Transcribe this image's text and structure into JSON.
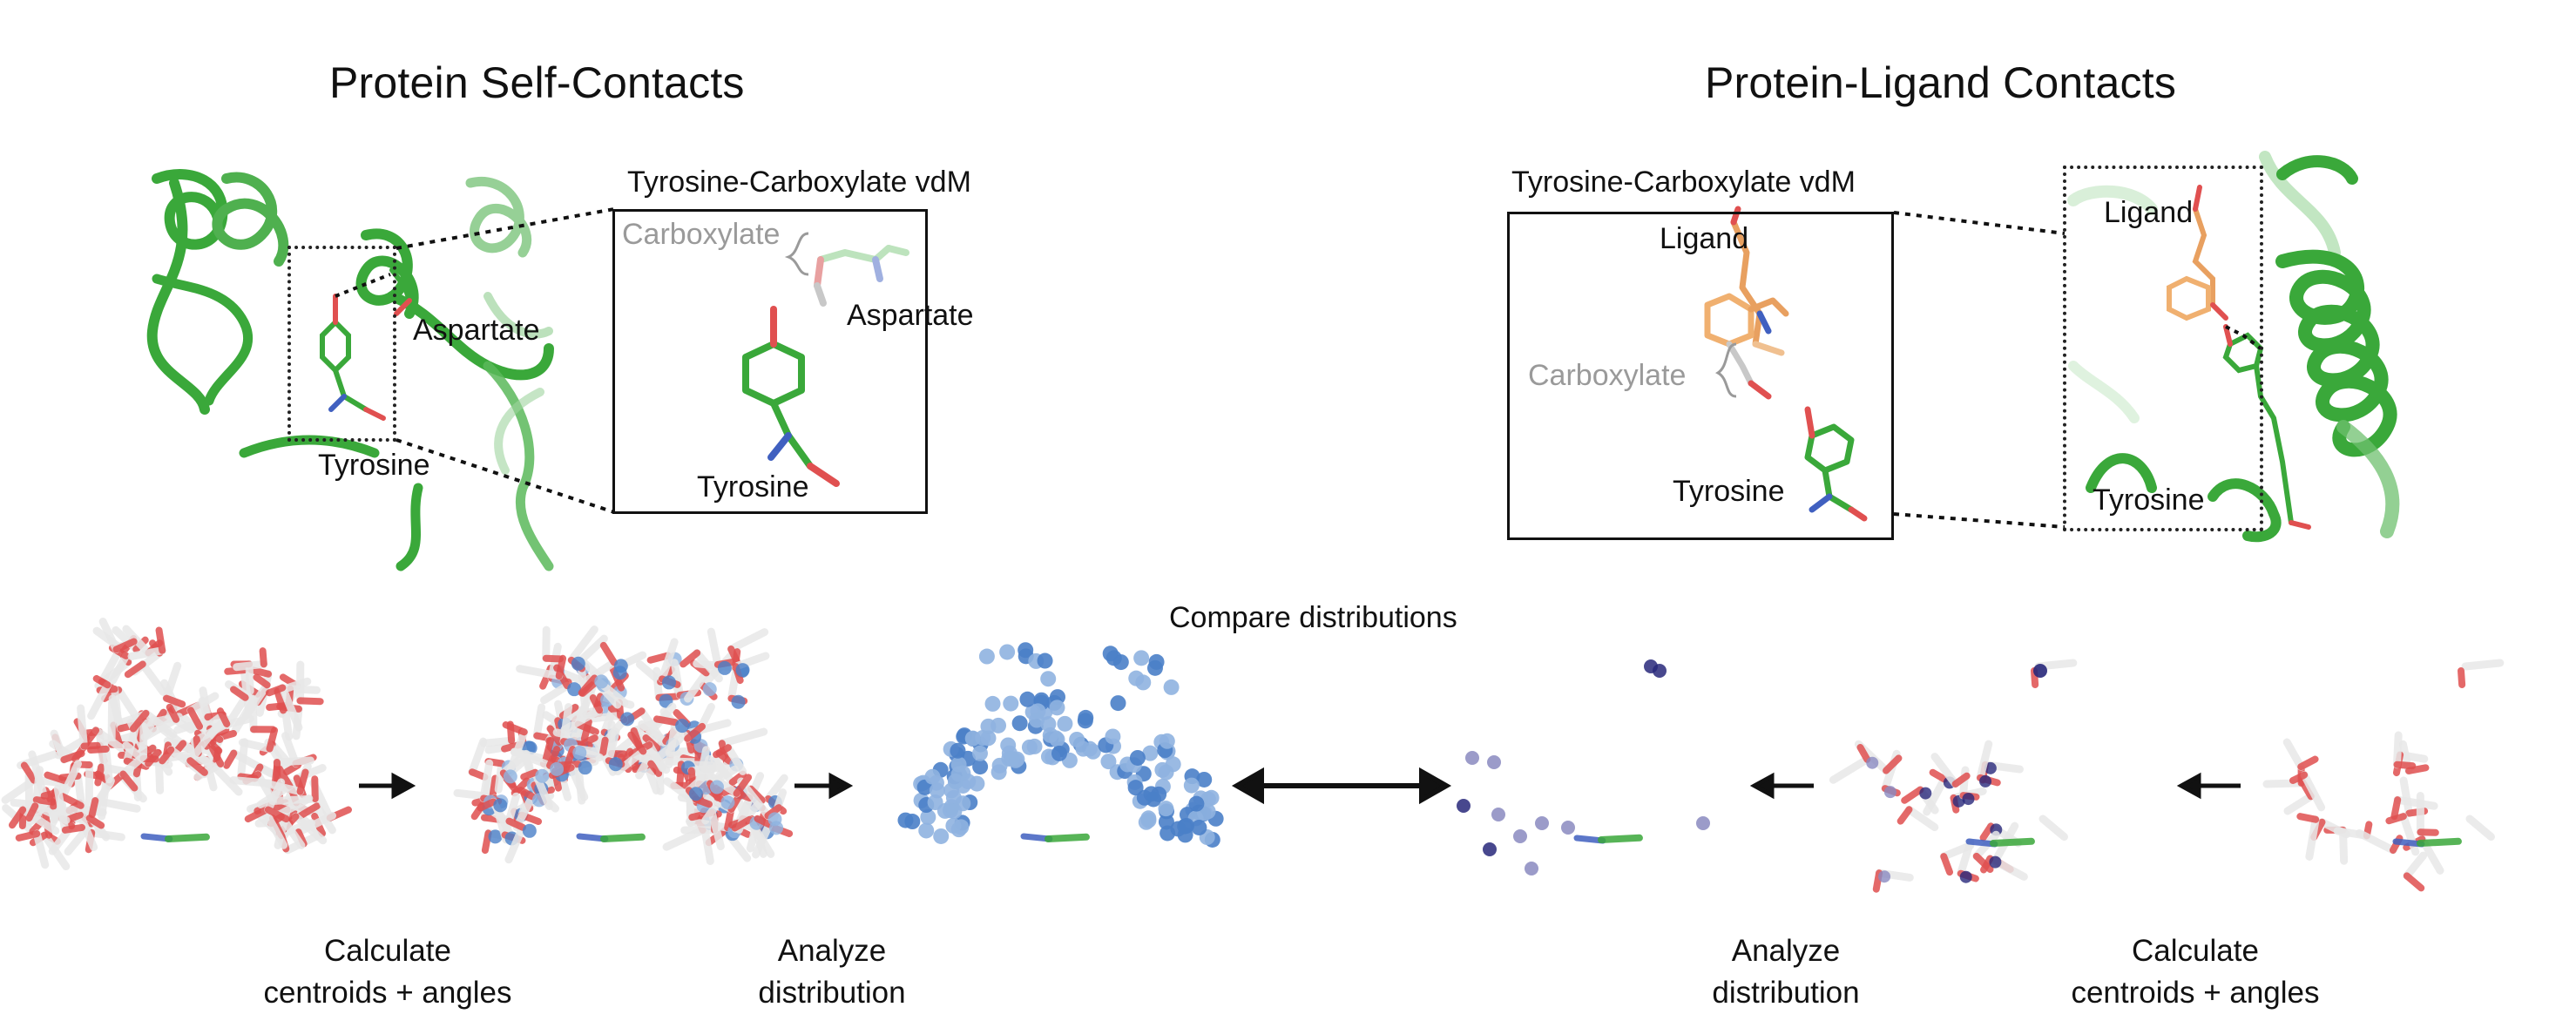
{
  "top_left": {
    "title": "Protein Self-Contacts",
    "inset_title": "Tyrosine-Carboxylate vdM",
    "labels": {
      "aspartate_structure": "Aspartate",
      "tyrosine_structure": "Tyrosine",
      "carboxylate": "Carboxylate",
      "aspartate_inset": "Aspartate",
      "tyrosine_inset": "Tyrosine"
    }
  },
  "top_right": {
    "title": "Protein-Ligand Contacts",
    "inset_title": "Tyrosine-Carboxylate vdM",
    "labels": {
      "ligand_inset": "Ligand",
      "carboxylate": "Carboxylate",
      "tyrosine_inset": "Tyrosine",
      "ligand_structure": "Ligand",
      "tyrosine_structure": "Tyrosine"
    }
  },
  "bottom": {
    "compare_label": "Compare distributions",
    "left_step1": {
      "line1": "Calculate",
      "line2": "centroids + angles"
    },
    "left_step2": {
      "line1": "Analyze",
      "line2": "distribution"
    },
    "right_step2": {
      "line1": "Analyze",
      "line2": "distribution"
    },
    "right_step1": {
      "line1": "Calculate",
      "line2": "centroids + angles"
    }
  },
  "colors": {
    "protein_green": "#3aa83a",
    "protein_green_light": "#8fd08f",
    "ligand_orange": "#e8a060",
    "oxygen_red": "#e05050",
    "nitrogen_blue": "#4060c0",
    "centroid_blue": "#4a80c8",
    "centroid_light_blue": "#8fb3e0",
    "centroid_navy": "#28287a",
    "centroid_purple": "#8a8ac0",
    "stick_white": "#e8e8e8",
    "label_gray": "#9a9a9a"
  },
  "icons": [
    "arrow-right-icon",
    "arrow-left-icon",
    "double-arrow-icon"
  ]
}
